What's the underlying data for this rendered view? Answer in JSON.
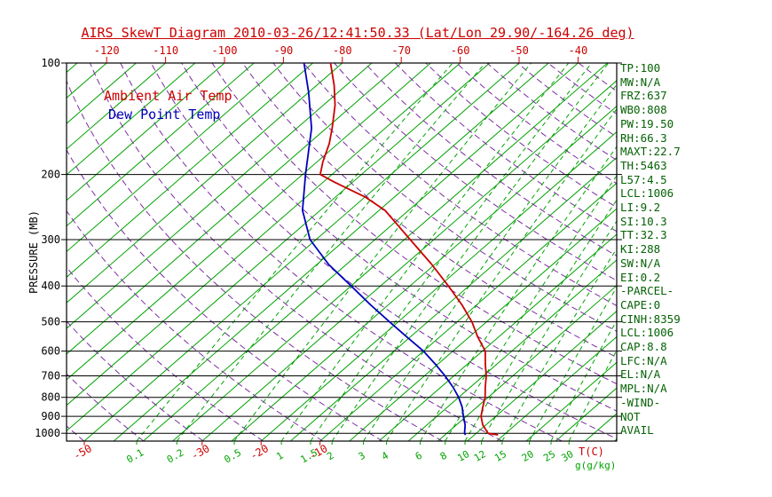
{
  "title": "AIRS SkewT Diagram 2010-03-26/12:41:50.33 (Lat/Lon 29.90/-164.26 deg)",
  "legend": {
    "temp_label": "Ambient Air Temp",
    "dew_label": "Dew Point Temp"
  },
  "colors": {
    "title_red": "#cc0000",
    "temp_curve": "#cc0000",
    "dew_curve": "#0000bb",
    "isotherm_green": "#00a300",
    "mixing_green": "#00a300",
    "adiabat_purple": "#7b2fa0",
    "axis_black": "#000000",
    "panel_green": "#066206"
  },
  "axes": {
    "pressure_label": "PRESSURE (MB)",
    "pressure_ticks": [
      100,
      200,
      300,
      400,
      500,
      600,
      700,
      800,
      900,
      1000
    ],
    "top_temp_ticks": [
      -120,
      -110,
      -100,
      -90,
      -80,
      -70,
      -60,
      -50,
      -40
    ],
    "bottom_temp_ticks": [
      -50,
      -30,
      -20,
      -10
    ],
    "temp_unit_label": "T(C)",
    "mixing_unit_label": "g(g/kg)"
  },
  "chart_data": {
    "type": "line",
    "title": "AIRS SkewT Diagram",
    "x_axis_label": "T(C)",
    "y_axis_label": "PRESSURE (MB)",
    "x_scale": "skewed-temperature",
    "y_scale": "log-pressure-inverted",
    "pressure_range": [
      100,
      1050
    ],
    "isotherms_C": {
      "min": -160,
      "max": 45,
      "step": 5
    },
    "dry_adiabats_theta_K": {
      "min": 220,
      "max": 450,
      "step": 10
    },
    "mixing_ratio_g_kg": [
      0.1,
      0.2,
      0.5,
      1,
      1.5,
      2,
      3,
      4,
      6,
      8,
      10,
      12,
      15,
      20,
      25,
      30
    ],
    "series": [
      {
        "name": "Ambient Air Temp",
        "color_key": "temp_curve",
        "points_p_t": [
          [
            1010,
            19
          ],
          [
            1000,
            17
          ],
          [
            950,
            14.5
          ],
          [
            900,
            12.5
          ],
          [
            850,
            11
          ],
          [
            800,
            9.5
          ],
          [
            750,
            7.5
          ],
          [
            700,
            5.5
          ],
          [
            650,
            3
          ],
          [
            600,
            0.5
          ],
          [
            550,
            -3.5
          ],
          [
            500,
            -7.5
          ],
          [
            450,
            -12.5
          ],
          [
            400,
            -18.5
          ],
          [
            350,
            -25.5
          ],
          [
            300,
            -34
          ],
          [
            250,
            -44
          ],
          [
            230,
            -50
          ],
          [
            210,
            -58
          ],
          [
            200,
            -62
          ],
          [
            185,
            -64
          ],
          [
            165,
            -66.5
          ],
          [
            150,
            -69
          ],
          [
            130,
            -73
          ],
          [
            115,
            -77
          ],
          [
            100,
            -82
          ]
        ]
      },
      {
        "name": "Dew Point Temp",
        "color_key": "dew_curve",
        "points_p_t": [
          [
            1010,
            13.5
          ],
          [
            1000,
            13
          ],
          [
            950,
            11.5
          ],
          [
            900,
            9.5
          ],
          [
            850,
            7.5
          ],
          [
            800,
            5
          ],
          [
            750,
            2
          ],
          [
            700,
            -1.5
          ],
          [
            650,
            -5.5
          ],
          [
            600,
            -10
          ],
          [
            550,
            -15.5
          ],
          [
            500,
            -21.5
          ],
          [
            450,
            -28
          ],
          [
            400,
            -35
          ],
          [
            350,
            -43
          ],
          [
            300,
            -51
          ],
          [
            250,
            -58
          ],
          [
            200,
            -64.5
          ],
          [
            150,
            -72.5
          ],
          [
            120,
            -80
          ],
          [
            100,
            -86.5
          ]
        ]
      }
    ]
  },
  "panel": {
    "items": [
      "TP:100",
      "MW:N/A",
      "FRZ:637",
      "WB0:808",
      "PW:19.50",
      "RH:66.3",
      "MAXT:22.7",
      "TH:5463",
      "L57:4.5",
      "LCL:1006",
      "LI:9.2",
      "SI:10.3",
      "TT:32.3",
      "KI:288",
      "SW:N/A",
      "EI:0.2",
      "-PARCEL-",
      "CAPE:0",
      "CINH:8359",
      "LCL:1006",
      "CAP:8.8",
      "LFC:N/A",
      "EL:N/A",
      "MPL:N/A",
      "-WIND-",
      "NOT",
      "AVAIL"
    ]
  }
}
